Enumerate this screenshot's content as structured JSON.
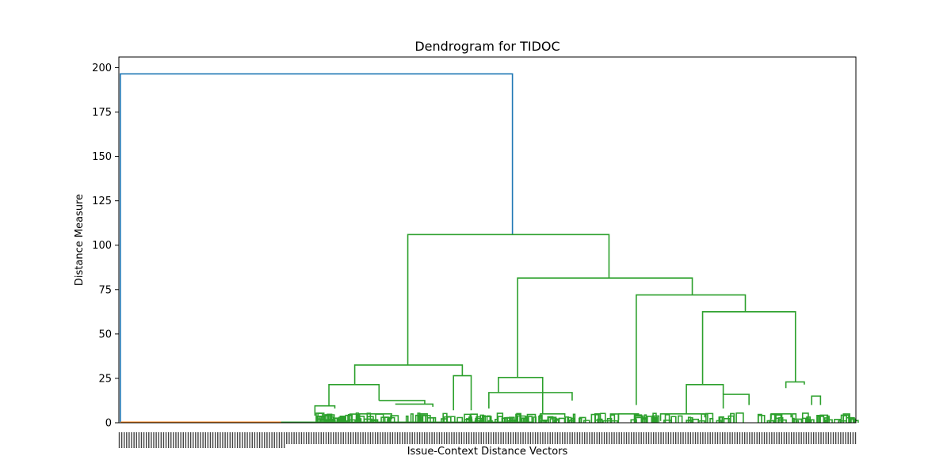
{
  "chart_data": {
    "type": "dendrogram",
    "title": "Dendrogram for TIDOC",
    "xlabel": "Issue-Context Distance Vectors",
    "ylabel": "Distance Measure",
    "ylim": [
      0,
      206
    ],
    "yticks": [
      0,
      25,
      50,
      75,
      100,
      125,
      150,
      175,
      200
    ],
    "grid": false,
    "leaf_label_count": 300,
    "colors": {
      "root": "#1f77b4",
      "orange_cluster": "#ff7f0e",
      "green_cluster": "#2ca02c",
      "axes": "#000000"
    },
    "merges": [
      {
        "x": [
          0.2,
          0.2,
          53.4,
          53.4
        ],
        "y": [
          0.5,
          196.5,
          196.5,
          106
        ],
        "series": "root"
      },
      {
        "x": [
          39.2,
          39.2,
          66.5,
          66.5
        ],
        "y": [
          32.5,
          106,
          106,
          81.5
        ],
        "series": "green_cluster"
      },
      {
        "x": [
          54.1,
          54.1,
          77.8,
          77.8
        ],
        "y": [
          25.5,
          81.5,
          81.5,
          72
        ],
        "series": "green_cluster"
      },
      {
        "x": [
          70.2,
          70.2,
          85,
          85
        ],
        "y": [
          10,
          72,
          72,
          62.5
        ],
        "series": "green_cluster"
      },
      {
        "x": [
          79.2,
          79.2,
          91.8,
          91.8
        ],
        "y": [
          21.5,
          62.5,
          62.5,
          23
        ],
        "series": "green_cluster"
      },
      {
        "x": [
          32,
          32,
          46.6,
          46.6
        ],
        "y": [
          21.5,
          32.5,
          32.5,
          26.5
        ],
        "series": "green_cluster"
      },
      {
        "x": [
          28.5,
          28.5,
          35.3,
          35.3
        ],
        "y": [
          9.5,
          21.5,
          21.5,
          12.5
        ],
        "series": "green_cluster"
      },
      {
        "x": [
          45.4,
          45.4,
          47.8,
          47.8
        ],
        "y": [
          7,
          26.5,
          26.5,
          7
        ],
        "series": "green_cluster"
      },
      {
        "x": [
          51.5,
          51.5,
          57.5,
          57.5
        ],
        "y": [
          17,
          25.5,
          25.5,
          5
        ],
        "series": "green_cluster"
      },
      {
        "x": [
          50.2,
          50.2,
          61.5,
          61.5
        ],
        "y": [
          8,
          17,
          17,
          12.5
        ],
        "series": "green_cluster"
      },
      {
        "x": [
          77,
          77,
          82,
          82
        ],
        "y": [
          5,
          21.5,
          21.5,
          16
        ],
        "series": "green_cluster"
      },
      {
        "x": [
          82,
          82,
          85.5,
          85.5
        ],
        "y": [
          8,
          16,
          16,
          10
        ],
        "series": "green_cluster"
      },
      {
        "x": [
          90.5,
          90.5,
          93,
          93
        ],
        "y": [
          19.5,
          23,
          23,
          21.5
        ],
        "series": "green_cluster"
      },
      {
        "x": [
          35.3,
          35.3,
          41.5,
          41.5
        ],
        "y": [
          12.5,
          12.5,
          12.5,
          10.5
        ],
        "series": "green_cluster"
      },
      {
        "x": [
          37.5,
          37.5,
          42.6,
          42.6
        ],
        "y": [
          10.5,
          10.5,
          10.5,
          9
        ],
        "series": "green_cluster"
      },
      {
        "x": [
          26.6,
          26.6,
          29.3,
          29.3
        ],
        "y": [
          4,
          9.5,
          9.5,
          8
        ],
        "series": "green_cluster"
      },
      {
        "x": [
          32.5,
          32.5,
          37,
          37
        ],
        "y": [
          1,
          5,
          5,
          2
        ],
        "series": "green_cluster"
      },
      {
        "x": [
          22,
          22,
          56.2,
          56.2
        ],
        "y": [
          0.3,
          0.3,
          0.3,
          0.3
        ],
        "series": "green_cluster"
      },
      {
        "x": [
          57.2,
          57.2,
          60.5,
          60.5
        ],
        "y": [
          2,
          5,
          5,
          3
        ],
        "series": "green_cluster"
      },
      {
        "x": [
          67.8,
          67.8,
          70.5,
          70.5
        ],
        "y": [
          1.5,
          5,
          5,
          4
        ],
        "series": "green_cluster"
      },
      {
        "x": [
          73.5,
          73.5,
          79.5,
          79.5
        ],
        "y": [
          1,
          5,
          5,
          3
        ],
        "series": "green_cluster"
      },
      {
        "x": [
          88.5,
          88.5,
          91.2,
          91.2
        ],
        "y": [
          2,
          5,
          5,
          3
        ],
        "series": "green_cluster"
      },
      {
        "x": [
          94,
          94,
          95.2,
          95.2
        ],
        "y": [
          10,
          15,
          15,
          10
        ],
        "series": "green_cluster"
      }
    ],
    "orange_baseline": {
      "x": [
        0.2,
        26.5
      ],
      "y": [
        0.3,
        0.3
      ],
      "series": "orange_cluster"
    }
  }
}
